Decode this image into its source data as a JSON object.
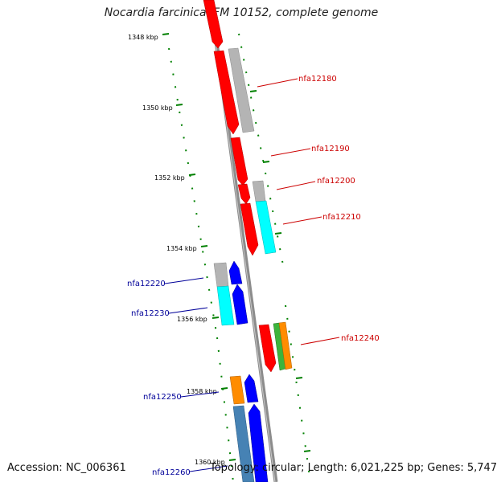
{
  "title": "Nocardia farcinica IFM 10152, complete genome",
  "footer": {
    "accession": "Accession: NC_006361",
    "summary": "Topology: circular; Length: 6,021,225 bp; Genes: 5,747"
  },
  "colors": {
    "red": "#ff0000",
    "gray": "#b4b4b4",
    "cyan": "#00ffff",
    "blue": "#0000ff",
    "orange": "#ff8c00",
    "green": "#3cb43c",
    "steelblue": "#4682b4",
    "tick": "#008000",
    "label_red": "#cc0000",
    "label_blue": "#000099"
  },
  "ruler": [
    {
      "label": "1348 kbp"
    },
    {
      "label": "1350 kbp"
    },
    {
      "label": "1352 kbp"
    },
    {
      "label": "1354 kbp"
    },
    {
      "label": "1356 kbp"
    },
    {
      "label": "1358 kbp"
    },
    {
      "label": "1360 kbp"
    }
  ],
  "gene_labels": [
    {
      "text": "nfa12180",
      "color": "red"
    },
    {
      "text": "nfa12190",
      "color": "red"
    },
    {
      "text": "nfa12200",
      "color": "red"
    },
    {
      "text": "nfa12210",
      "color": "red"
    },
    {
      "text": "nfa12220",
      "color": "blue"
    },
    {
      "text": "nfa12230",
      "color": "blue"
    },
    {
      "text": "nfa12240",
      "color": "red"
    },
    {
      "text": "nfa12250",
      "color": "blue"
    },
    {
      "text": "nfa12260",
      "color": "blue"
    }
  ]
}
